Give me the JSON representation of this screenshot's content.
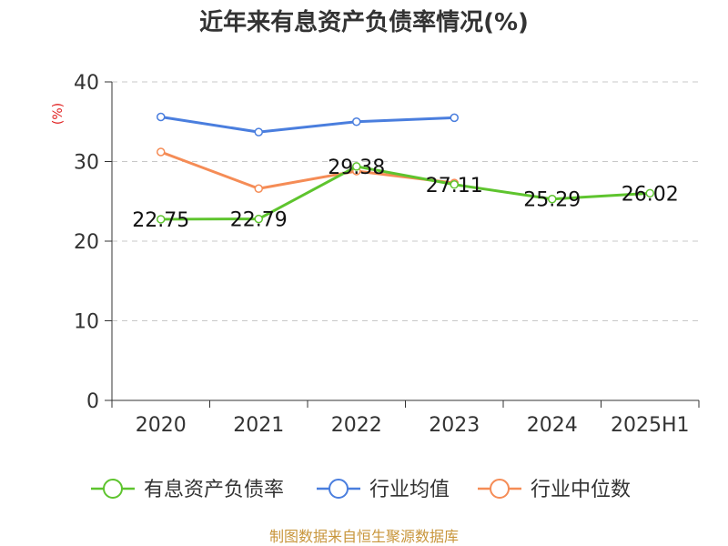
{
  "chart_data": {
    "type": "line",
    "title": "近年来有息资产负债率情况(%)",
    "ylabel": "(%)",
    "xlabel": "",
    "categories": [
      "2020",
      "2021",
      "2022",
      "2023",
      "2024",
      "2025H1"
    ],
    "ylim": [
      0,
      40
    ],
    "yticks": [
      0,
      10,
      20,
      30,
      40
    ],
    "grid": true,
    "legend_position": "bottom",
    "series": [
      {
        "name": "有息资产负债率",
        "color": "#5ec42e",
        "values": [
          22.75,
          22.79,
          29.38,
          27.11,
          25.29,
          26.02
        ],
        "labels": [
          "22.75",
          "22.79",
          "29.38",
          "27.11",
          "25.29",
          "26.02"
        ]
      },
      {
        "name": "行业均值",
        "color": "#4a7ede",
        "values": [
          35.6,
          33.7,
          35.0,
          35.5,
          null,
          null
        ]
      },
      {
        "name": "行业中位数",
        "color": "#f58c56",
        "values": [
          31.2,
          26.6,
          28.8,
          27.3,
          null,
          null
        ]
      }
    ],
    "source": "制图数据来自恒生聚源数据库",
    "colors": {
      "axis": "#333333",
      "grid": "#c8c8c8",
      "ylabel": "#e02020",
      "source": "#c8963c"
    }
  }
}
